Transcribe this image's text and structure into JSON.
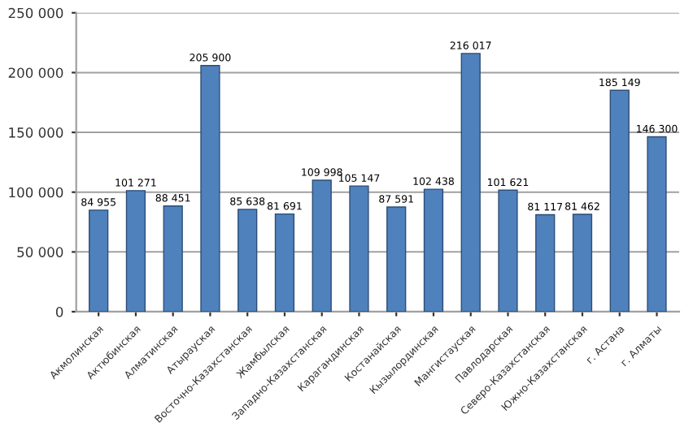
{
  "chart_data": {
    "type": "bar",
    "categories": [
      "Акмолинская",
      "Актюбинская",
      "Алматинская",
      "Атырауская",
      "Восточно-Казахстанская",
      "Жамбылская",
      "Западно-Казахстанская",
      "Карагандинская",
      "Костанайская",
      "Кызылординская",
      "Мангистауская",
      "Павлодарская",
      "Северо-Казахстанская",
      "Южно-Казахстанская",
      "г. Астана",
      "г. Алматы"
    ],
    "values": [
      84955,
      101271,
      88451,
      205900,
      85638,
      81691,
      109998,
      105147,
      87591,
      102438,
      216017,
      101621,
      81117,
      81462,
      185149,
      146300
    ],
    "value_labels": [
      "84 955",
      "101 271",
      "88 451",
      "205 900",
      "85 638",
      "81 691",
      "109 998",
      "105 147",
      "87 591",
      "102 438",
      "216 017",
      "101 621",
      "81 117",
      "81 462",
      "185 149",
      "146 300"
    ],
    "color": "#4f81bd",
    "ylim": [
      0,
      250000
    ],
    "yticks": [
      {
        "value": 0,
        "label": "0"
      },
      {
        "value": 50000,
        "label": "50 000"
      },
      {
        "value": 100000,
        "label": "100 000"
      },
      {
        "value": 150000,
        "label": "150 000"
      },
      {
        "value": 200000,
        "label": "200 000"
      },
      {
        "value": 250000,
        "label": "250 000"
      }
    ],
    "grid": "y",
    "legend": false
  }
}
